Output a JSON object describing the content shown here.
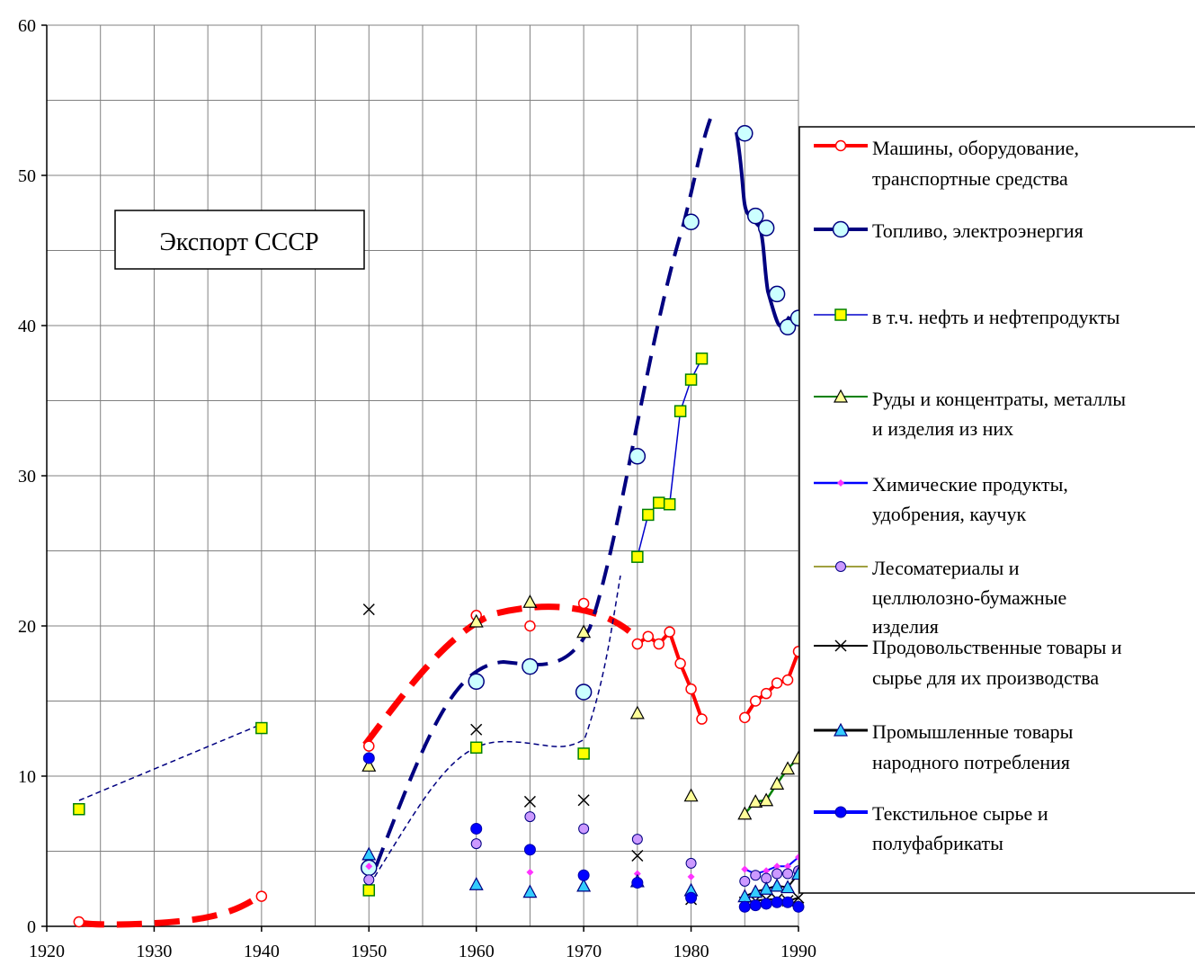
{
  "chart_data": {
    "type": "line",
    "title": "Экспорт СССР",
    "xlabel": "",
    "ylabel": "",
    "xlim": [
      1920,
      1990
    ],
    "ylim": [
      0,
      60
    ],
    "x_ticks": [
      "1920",
      "1930",
      "1940",
      "1950",
      "1960",
      "1970",
      "1980",
      "1990"
    ],
    "y_ticks": [
      "0",
      "10",
      "20",
      "30",
      "40",
      "50",
      "60"
    ],
    "grid": true,
    "legend_position": "right",
    "series": [
      {
        "name": "Машины, оборудование, транспортные средства",
        "color": "#ff0000",
        "marker": "circle-open",
        "points": [
          [
            1923,
            0.3
          ],
          [
            1940,
            2.0
          ],
          [
            1950,
            12.0
          ],
          [
            1960,
            20.7
          ],
          [
            1965,
            20.0
          ],
          [
            1970,
            21.5
          ],
          [
            1975,
            18.8
          ],
          [
            1976,
            19.3
          ],
          [
            1977,
            18.8
          ],
          [
            1978,
            19.6
          ],
          [
            1979,
            17.5
          ],
          [
            1980,
            15.8
          ],
          [
            1981,
            13.8
          ],
          [
            1985,
            13.9
          ],
          [
            1986,
            15.0
          ],
          [
            1987,
            15.5
          ],
          [
            1988,
            16.2
          ],
          [
            1989,
            16.4
          ],
          [
            1990,
            18.3
          ]
        ]
      },
      {
        "name": "Топливо, электроэнергия",
        "color": "#000080",
        "marker": "circle-large",
        "points": [
          [
            1950,
            3.9
          ],
          [
            1960,
            16.3
          ],
          [
            1965,
            17.3
          ],
          [
            1970,
            15.6
          ],
          [
            1975,
            31.3
          ],
          [
            1980,
            46.9
          ],
          [
            1985,
            52.8
          ],
          [
            1986,
            47.3
          ],
          [
            1987,
            46.5
          ],
          [
            1988,
            42.1
          ],
          [
            1989,
            39.9
          ],
          [
            1990,
            40.5
          ]
        ]
      },
      {
        "name": "в т.ч. нефть и нефтепродукты",
        "color": "#0000cc",
        "marker": "square",
        "points": [
          [
            1923,
            7.8
          ],
          [
            1940,
            13.2
          ],
          [
            1950,
            2.4
          ],
          [
            1960,
            11.9
          ],
          [
            1970,
            11.5
          ],
          [
            1975,
            24.6
          ],
          [
            1976,
            27.4
          ],
          [
            1977,
            28.2
          ],
          [
            1978,
            28.1
          ],
          [
            1979,
            34.3
          ],
          [
            1980,
            36.4
          ],
          [
            1981,
            37.8
          ]
        ]
      },
      {
        "name": "Руды и концентраты, металлы и изделия из них",
        "color": "#008000",
        "marker": "triangle-open",
        "points": [
          [
            1950,
            10.7
          ],
          [
            1960,
            20.3
          ],
          [
            1965,
            21.6
          ],
          [
            1970,
            19.6
          ],
          [
            1975,
            14.2
          ],
          [
            1980,
            8.7
          ],
          [
            1985,
            7.5
          ],
          [
            1986,
            8.3
          ],
          [
            1987,
            8.4
          ],
          [
            1988,
            9.5
          ],
          [
            1989,
            10.5
          ],
          [
            1990,
            11.2
          ]
        ]
      },
      {
        "name": "Химические продукты, удобрения, каучук",
        "color": "#0000ff",
        "marker": "diamond",
        "points": [
          [
            1950,
            4.0
          ],
          [
            1960,
            5.6
          ],
          [
            1965,
            3.6
          ],
          [
            1970,
            3.4
          ],
          [
            1975,
            3.5
          ],
          [
            1980,
            3.3
          ],
          [
            1985,
            3.8
          ],
          [
            1986,
            3.5
          ],
          [
            1987,
            3.7
          ],
          [
            1988,
            4.0
          ],
          [
            1989,
            4.0
          ],
          [
            1990,
            4.6
          ]
        ]
      },
      {
        "name": "Лесоматериалы и целлюлозно-бумажные изделия",
        "color": "#808000",
        "marker": "circle-filled",
        "points": [
          [
            1950,
            3.1
          ],
          [
            1960,
            5.5
          ],
          [
            1965,
            7.3
          ],
          [
            1970,
            6.5
          ],
          [
            1975,
            5.8
          ],
          [
            1980,
            4.2
          ],
          [
            1985,
            3.0
          ],
          [
            1986,
            3.4
          ],
          [
            1987,
            3.2
          ],
          [
            1988,
            3.5
          ],
          [
            1989,
            3.5
          ],
          [
            1990,
            3.7
          ]
        ]
      },
      {
        "name": "Продовольственные товары и сырье для их производства",
        "color": "#000000",
        "marker": "x",
        "points": [
          [
            1950,
            21.1
          ],
          [
            1960,
            13.1
          ],
          [
            1965,
            8.3
          ],
          [
            1970,
            8.4
          ],
          [
            1975,
            4.7
          ],
          [
            1980,
            1.8
          ],
          [
            1985,
            1.6
          ],
          [
            1986,
            1.7
          ],
          [
            1987,
            1.8
          ],
          [
            1988,
            1.8
          ],
          [
            1989,
            1.7
          ],
          [
            1990,
            1.9
          ]
        ]
      },
      {
        "name": "Промышленные товары народного потребления",
        "color": "#000000",
        "marker": "triangle-filled",
        "points": [
          [
            1950,
            4.8
          ],
          [
            1960,
            2.8
          ],
          [
            1965,
            2.3
          ],
          [
            1970,
            2.7
          ],
          [
            1975,
            3.0
          ],
          [
            1980,
            2.4
          ],
          [
            1985,
            2.0
          ],
          [
            1986,
            2.3
          ],
          [
            1987,
            2.5
          ],
          [
            1988,
            2.7
          ],
          [
            1989,
            2.6
          ],
          [
            1990,
            3.5
          ]
        ]
      },
      {
        "name": "Текстильное сырье и полуфабрикаты",
        "color": "#0000ff",
        "marker": "circle-solid",
        "points": [
          [
            1950,
            11.2
          ],
          [
            1960,
            6.5
          ],
          [
            1965,
            5.1
          ],
          [
            1970,
            3.4
          ],
          [
            1975,
            2.9
          ],
          [
            1980,
            1.9
          ],
          [
            1985,
            1.3
          ],
          [
            1986,
            1.4
          ],
          [
            1987,
            1.5
          ],
          [
            1988,
            1.6
          ],
          [
            1989,
            1.6
          ],
          [
            1990,
            1.3
          ]
        ]
      }
    ]
  }
}
